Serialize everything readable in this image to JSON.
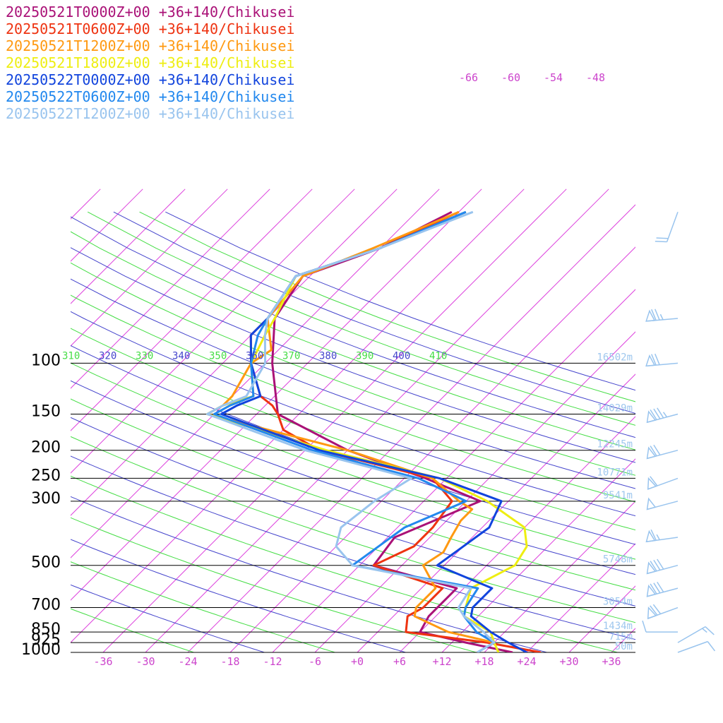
{
  "chart_data": {
    "type": "line",
    "title": "",
    "xlabel": "",
    "ylabel": "",
    "x_ticks": [
      "-36",
      "-30",
      "-24",
      "-18",
      "-12",
      "-6",
      "+0",
      "+6",
      "+12",
      "+18",
      "+24",
      "+30",
      "+36"
    ],
    "pressure_ticks": [
      "100",
      "150",
      "200",
      "250",
      "300",
      "500",
      "700",
      "850",
      "925",
      "1000"
    ],
    "height_labels": [
      {
        "p": 100,
        "label": "16502m"
      },
      {
        "p": 150,
        "label": "14029m"
      },
      {
        "p": 200,
        "label": "12245m"
      },
      {
        "p": 250,
        "label": "10771m"
      },
      {
        "p": 300,
        "label": "9541m"
      },
      {
        "p": 500,
        "label": "5748m"
      },
      {
        "p": 700,
        "label": "3054m"
      },
      {
        "p": 850,
        "label": "1434m"
      },
      {
        "p": 925,
        "label": "715m"
      },
      {
        "p": 1000,
        "label": "50m"
      }
    ],
    "theta_labels": [
      {
        "text": "310",
        "color": "#44dd44"
      },
      {
        "text": "320",
        "color": "#4444cc"
      },
      {
        "text": "330",
        "color": "#44dd44"
      },
      {
        "text": "340",
        "color": "#4444cc"
      },
      {
        "text": "350",
        "color": "#44dd44"
      },
      {
        "text": "360",
        "color": "#4444cc"
      },
      {
        "text": "370",
        "color": "#44dd44"
      },
      {
        "text": "380",
        "color": "#4444cc"
      },
      {
        "text": "390",
        "color": "#44dd44"
      },
      {
        "text": "400",
        "color": "#4444cc"
      },
      {
        "text": "410",
        "color": "#44dd44"
      }
    ],
    "isotherm_labels": [
      "-66",
      "-60",
      "-54",
      "-48"
    ],
    "series": [
      {
        "name": "20250521T0000Z+00 +36+140/Chikusei",
        "color": "#aa1177",
        "points": [
          [
            1000,
            22
          ],
          [
            925,
            14
          ],
          [
            850,
            6
          ],
          [
            750,
            5
          ],
          [
            700,
            5
          ],
          [
            600,
            5
          ],
          [
            500,
            -10
          ],
          [
            400,
            -11
          ],
          [
            300,
            -4
          ],
          [
            250,
            -15
          ],
          [
            200,
            -30
          ],
          [
            150,
            -45
          ],
          [
            100,
            -53
          ],
          [
            70,
            -59
          ],
          [
            50,
            -61
          ],
          [
            40,
            -54
          ],
          [
            30,
            -49
          ]
        ]
      },
      {
        "name": "20250521T0600Z+00 +36+140/Chikusei",
        "color": "#ee3311",
        "points": [
          [
            1000,
            26
          ],
          [
            925,
            17
          ],
          [
            850,
            4
          ],
          [
            750,
            2
          ],
          [
            700,
            3
          ],
          [
            600,
            3
          ],
          [
            500,
            -10
          ],
          [
            430,
            -7
          ],
          [
            370,
            -7
          ],
          [
            300,
            -8
          ],
          [
            250,
            -14
          ],
          [
            200,
            -34
          ],
          [
            170,
            -42
          ],
          [
            150,
            -45
          ],
          [
            140,
            -47
          ],
          [
            130,
            -50
          ],
          [
            100,
            -56
          ],
          [
            80,
            -60
          ],
          [
            70,
            -60
          ],
          [
            50,
            -62
          ],
          [
            40,
            -54
          ],
          [
            30,
            -48
          ]
        ]
      },
      {
        "name": "20250521T1200Z+00 +36+140/Chikusei",
        "color": "#ff9911",
        "points": [
          [
            1000,
            20
          ],
          [
            925,
            18
          ],
          [
            850,
            10
          ],
          [
            750,
            3
          ],
          [
            700,
            2
          ],
          [
            600,
            2
          ],
          [
            500,
            -3
          ],
          [
            450,
            -2
          ],
          [
            400,
            -3
          ],
          [
            350,
            -4
          ],
          [
            320,
            -4
          ],
          [
            300,
            -7
          ],
          [
            250,
            -14
          ],
          [
            200,
            -30
          ],
          [
            150,
            -55
          ],
          [
            140,
            -54
          ],
          [
            130,
            -54
          ],
          [
            100,
            -56
          ],
          [
            90,
            -55
          ],
          [
            70,
            -60
          ],
          [
            50,
            -61
          ],
          [
            40,
            -55
          ],
          [
            30,
            -48
          ]
        ]
      },
      {
        "name": "20250521T1800Z+00 +36+140/Chikusei",
        "color": "#eeee11",
        "points": [
          [
            1000,
            20
          ],
          [
            925,
            18
          ],
          [
            850,
            16
          ],
          [
            750,
            10
          ],
          [
            700,
            9
          ],
          [
            600,
            7
          ],
          [
            500,
            10
          ],
          [
            430,
            9
          ],
          [
            370,
            6
          ],
          [
            300,
            -3
          ],
          [
            250,
            -13
          ],
          [
            200,
            -33
          ],
          [
            150,
            -55
          ],
          [
            140,
            -54
          ],
          [
            130,
            -51
          ],
          [
            100,
            -56
          ],
          [
            80,
            -58
          ],
          [
            70,
            -59
          ],
          [
            50,
            -62
          ],
          [
            40,
            -54
          ],
          [
            30,
            -47
          ]
        ]
      },
      {
        "name": "20250522T0000Z+00 +36+140/Chikusei",
        "color": "#1144dd",
        "points": [
          [
            1000,
            24
          ],
          [
            925,
            20
          ],
          [
            850,
            16
          ],
          [
            750,
            11
          ],
          [
            700,
            10
          ],
          [
            600,
            10
          ],
          [
            500,
            -1
          ],
          [
            430,
            0
          ],
          [
            370,
            1
          ],
          [
            300,
            -1
          ],
          [
            250,
            -13
          ],
          [
            200,
            -34
          ],
          [
            150,
            -53
          ],
          [
            140,
            -52
          ],
          [
            130,
            -50
          ],
          [
            100,
            -56
          ],
          [
            80,
            -60
          ],
          [
            70,
            -60
          ],
          [
            50,
            -62
          ],
          [
            40,
            -54
          ],
          [
            30,
            -47
          ]
        ]
      },
      {
        "name": "20250522T0600Z+00 +36+140/Chikusei",
        "color": "#2288ee",
        "points": [
          [
            1000,
            17
          ],
          [
            925,
            18
          ],
          [
            850,
            14
          ],
          [
            750,
            10
          ],
          [
            700,
            9
          ],
          [
            600,
            8
          ],
          [
            500,
            -13
          ],
          [
            430,
            -12
          ],
          [
            370,
            -11
          ],
          [
            300,
            -6
          ],
          [
            250,
            -16
          ],
          [
            200,
            -35
          ],
          [
            150,
            -54
          ],
          [
            140,
            -53
          ],
          [
            130,
            -51
          ],
          [
            100,
            -56
          ],
          [
            80,
            -59
          ],
          [
            70,
            -60
          ],
          [
            50,
            -62
          ],
          [
            40,
            -54
          ],
          [
            30,
            -47
          ]
        ]
      },
      {
        "name": "20250522T1200Z+00 +36+140/Chikusei",
        "color": "#99c4ee",
        "points": [
          [
            1000,
            17
          ],
          [
            925,
            18
          ],
          [
            850,
            15
          ],
          [
            750,
            10
          ],
          [
            700,
            8
          ],
          [
            600,
            7
          ],
          [
            500,
            -13
          ],
          [
            430,
            -18
          ],
          [
            370,
            -20
          ],
          [
            300,
            -19
          ],
          [
            250,
            -17
          ],
          [
            200,
            -36
          ],
          [
            150,
            -55
          ],
          [
            140,
            -54
          ],
          [
            130,
            -52
          ],
          [
            100,
            -54
          ],
          [
            80,
            -58
          ],
          [
            70,
            -60
          ],
          [
            50,
            -62
          ],
          [
            40,
            -54
          ],
          [
            30,
            -46
          ]
        ]
      }
    ],
    "wind_barbs": [
      {
        "p": 30,
        "dir": 200,
        "speed": 20
      },
      {
        "p": 70,
        "dir": 265,
        "speed": 75
      },
      {
        "p": 100,
        "dir": 265,
        "speed": 70
      },
      {
        "p": 150,
        "dir": 255,
        "speed": 85
      },
      {
        "p": 200,
        "dir": 255,
        "speed": 70
      },
      {
        "p": 250,
        "dir": 250,
        "speed": 60
      },
      {
        "p": 300,
        "dir": 255,
        "speed": 50
      },
      {
        "p": 400,
        "dir": 262,
        "speed": 65
      },
      {
        "p": 500,
        "dir": 255,
        "speed": 80
      },
      {
        "p": 600,
        "dir": 255,
        "speed": 80
      },
      {
        "p": 700,
        "dir": 250,
        "speed": 70
      },
      {
        "p": 850,
        "dir": 270,
        "speed": 10
      },
      {
        "p": 925,
        "dir": 60,
        "speed": 15
      },
      {
        "p": 1000,
        "dir": 70,
        "speed": 10
      }
    ]
  }
}
